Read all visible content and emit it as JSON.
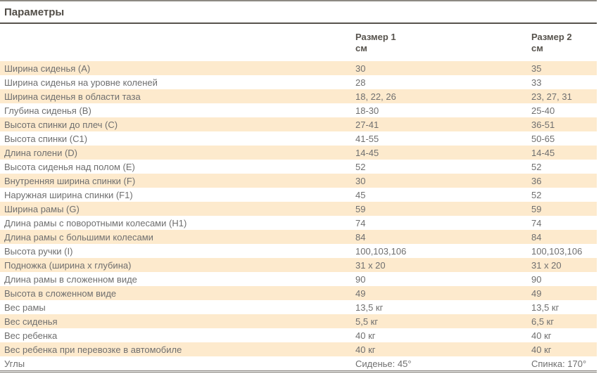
{
  "page": {
    "title": "Параметры"
  },
  "table": {
    "col_headers": [
      {
        "line1": "Размер 1",
        "line2": "см"
      },
      {
        "line1": "Размер 2",
        "line2": "см"
      }
    ],
    "rows": [
      {
        "label": "Ширина сиденья (А)",
        "size1": "30",
        "size2": "35"
      },
      {
        "label": "Ширина сиденья на уровне коленей",
        "size1": "28",
        "size2": "33"
      },
      {
        "label": "Ширина сиденья в области таза",
        "size1": "18, 22, 26",
        "size2": "23, 27, 31"
      },
      {
        "label": "Глубина сиденья (В)",
        "size1": "18-30",
        "size2": "25-40"
      },
      {
        "label": "Высота спинки до плеч (С)",
        "size1": "27-41",
        "size2": "36-51"
      },
      {
        "label": "Высота спинки (С1)",
        "size1": "41-55",
        "size2": "50-65"
      },
      {
        "label": "Длина голени (D)",
        "size1": "14-45",
        "size2": "14-45"
      },
      {
        "label": "Высота сиденья над полом (Е)",
        "size1": "52",
        "size2": "52"
      },
      {
        "label": "Внутренняя ширина спинки (F)",
        "size1": "30",
        "size2": "36"
      },
      {
        "label": "Наружная ширина спинки (F1)",
        "size1": "45",
        "size2": "52"
      },
      {
        "label": "Ширина рамы (G)",
        "size1": "59",
        "size2": "59"
      },
      {
        "label": "Длина рамы с поворотными колесами (H1)",
        "size1": "74",
        "size2": "74"
      },
      {
        "label": "Длина рамы с большими колесами",
        "size1": "84",
        "size2": "84"
      },
      {
        "label": "Высота ручки (I)",
        "size1": "100,103,106",
        "size2": "100,103,106"
      },
      {
        "label": "Подножка (ширина х глубина)",
        "size1": "31 х 20",
        "size2": "31 х 20"
      },
      {
        "label": "Длина рамы в сложенном виде",
        "size1": "90",
        "size2": "90"
      },
      {
        "label": "Высота в сложенном виде",
        "size1": "49",
        "size2": "49"
      },
      {
        "label": "Вес рамы",
        "size1": "13,5 кг",
        "size2": "13,5 кг"
      },
      {
        "label": "Вес сиденья",
        "size1": "5,5 кг",
        "size2": "6,5 кг"
      },
      {
        "label": "Вес ребенка",
        "size1": "40 кг",
        "size2": "40 кг"
      },
      {
        "label": "Вес ребенка при перевозке в автомобиле",
        "size1": "40 кг",
        "size2": "40 кг"
      },
      {
        "label": "Углы",
        "size1": "Сиденье: 45°",
        "size2": "Спинка: 170°"
      }
    ]
  },
  "colors": {
    "row_shade": "#fdeacd",
    "body_text": "#6f6f6f",
    "heading_text": "#514d47",
    "title_rule": "#57534d",
    "top_rule": "#8d8983",
    "bottom_rule": "#7b7771"
  }
}
